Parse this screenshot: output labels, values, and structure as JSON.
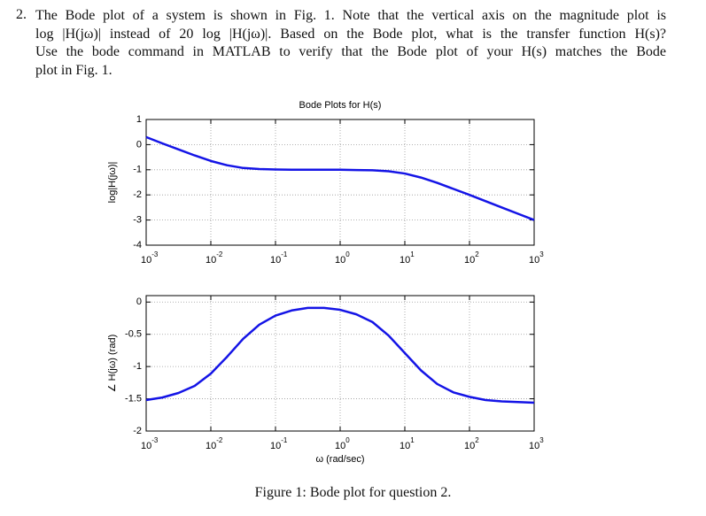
{
  "question": {
    "number": "2.",
    "lines": [
      "The Bode plot of a system is shown in Fig. 1. Note that the vertical axis on the magnitude plot is",
      "log |H(jω)| instead of 20 log |H(jω)|. Based on the Bode plot, what is the transfer function H(s)?",
      "Use the bode command in MATLAB to verify that the Bode plot of your H(s) matches the Bode",
      "plot in Fig. 1."
    ]
  },
  "caption": "Figure 1: Bode plot for question 2.",
  "chart_data": [
    {
      "type": "line",
      "title": "Bode Plots for H(s)",
      "ylabel": "log|H(jω)|",
      "xscale": "log",
      "grid": true,
      "x": [
        0.001,
        0.001778,
        0.003162,
        0.005623,
        0.01,
        0.01778,
        0.03162,
        0.05623,
        0.1,
        0.1778,
        0.3162,
        0.5623,
        1,
        1.778,
        3.162,
        5.623,
        10,
        17.78,
        31.62,
        56.23,
        100,
        177.8,
        316.2,
        562.3,
        1000
      ],
      "series": [
        {
          "name": "log|H(jω)|",
          "color": "#1414e6",
          "values": [
            0.3,
            0.05,
            -0.19,
            -0.43,
            -0.65,
            -0.82,
            -0.93,
            -0.97,
            -0.99,
            -1.0,
            -1.0,
            -1.0,
            -1.0,
            -1.01,
            -1.02,
            -1.06,
            -1.15,
            -1.31,
            -1.52,
            -1.76,
            -2.0,
            -2.25,
            -2.5,
            -2.75,
            -3.0
          ]
        }
      ],
      "xlim": [
        0.001,
        1000
      ],
      "xticks": [
        {
          "value": 0.001,
          "label": "10",
          "exponent": "-3"
        },
        {
          "value": 0.01,
          "label": "10",
          "exponent": "-2"
        },
        {
          "value": 0.1,
          "label": "10",
          "exponent": "-1"
        },
        {
          "value": 1,
          "label": "10",
          "exponent": "0"
        },
        {
          "value": 10,
          "label": "10",
          "exponent": "1"
        },
        {
          "value": 100,
          "label": "10",
          "exponent": "2"
        },
        {
          "value": 1000,
          "label": "10",
          "exponent": "3"
        }
      ],
      "ylim": [
        -4,
        1
      ],
      "yticks": [
        -4,
        -3,
        -2,
        -1,
        0,
        1
      ]
    },
    {
      "type": "line",
      "xlabel": "ω (rad/sec)",
      "ylabel": "∠ H(jω) (rad)",
      "xscale": "log",
      "grid": true,
      "x": [
        0.001,
        0.001778,
        0.003162,
        0.005623,
        0.01,
        0.01778,
        0.03162,
        0.05623,
        0.1,
        0.1778,
        0.3162,
        0.5623,
        1,
        1.778,
        3.162,
        5.623,
        10,
        17.78,
        31.62,
        56.23,
        100,
        177.8,
        316.2,
        562.3,
        1000
      ],
      "series": [
        {
          "name": "∠ H(jω)",
          "color": "#1414e6",
          "values": [
            -1.52,
            -1.48,
            -1.41,
            -1.3,
            -1.11,
            -0.85,
            -0.57,
            -0.35,
            -0.21,
            -0.13,
            -0.09,
            -0.09,
            -0.12,
            -0.19,
            -0.31,
            -0.52,
            -0.79,
            -1.06,
            -1.27,
            -1.4,
            -1.47,
            -1.52,
            -1.54,
            -1.55,
            -1.56
          ]
        }
      ],
      "xlim": [
        0.001,
        1000
      ],
      "xticks": [
        {
          "value": 0.001,
          "label": "10",
          "exponent": "-3"
        },
        {
          "value": 0.01,
          "label": "10",
          "exponent": "-2"
        },
        {
          "value": 0.1,
          "label": "10",
          "exponent": "-1"
        },
        {
          "value": 1,
          "label": "10",
          "exponent": "0"
        },
        {
          "value": 10,
          "label": "10",
          "exponent": "1"
        },
        {
          "value": 100,
          "label": "10",
          "exponent": "2"
        },
        {
          "value": 1000,
          "label": "10",
          "exponent": "3"
        }
      ],
      "ylim": [
        -2,
        0.1
      ],
      "yticks": [
        -2,
        -1.5,
        -1,
        -0.5,
        0
      ]
    }
  ]
}
